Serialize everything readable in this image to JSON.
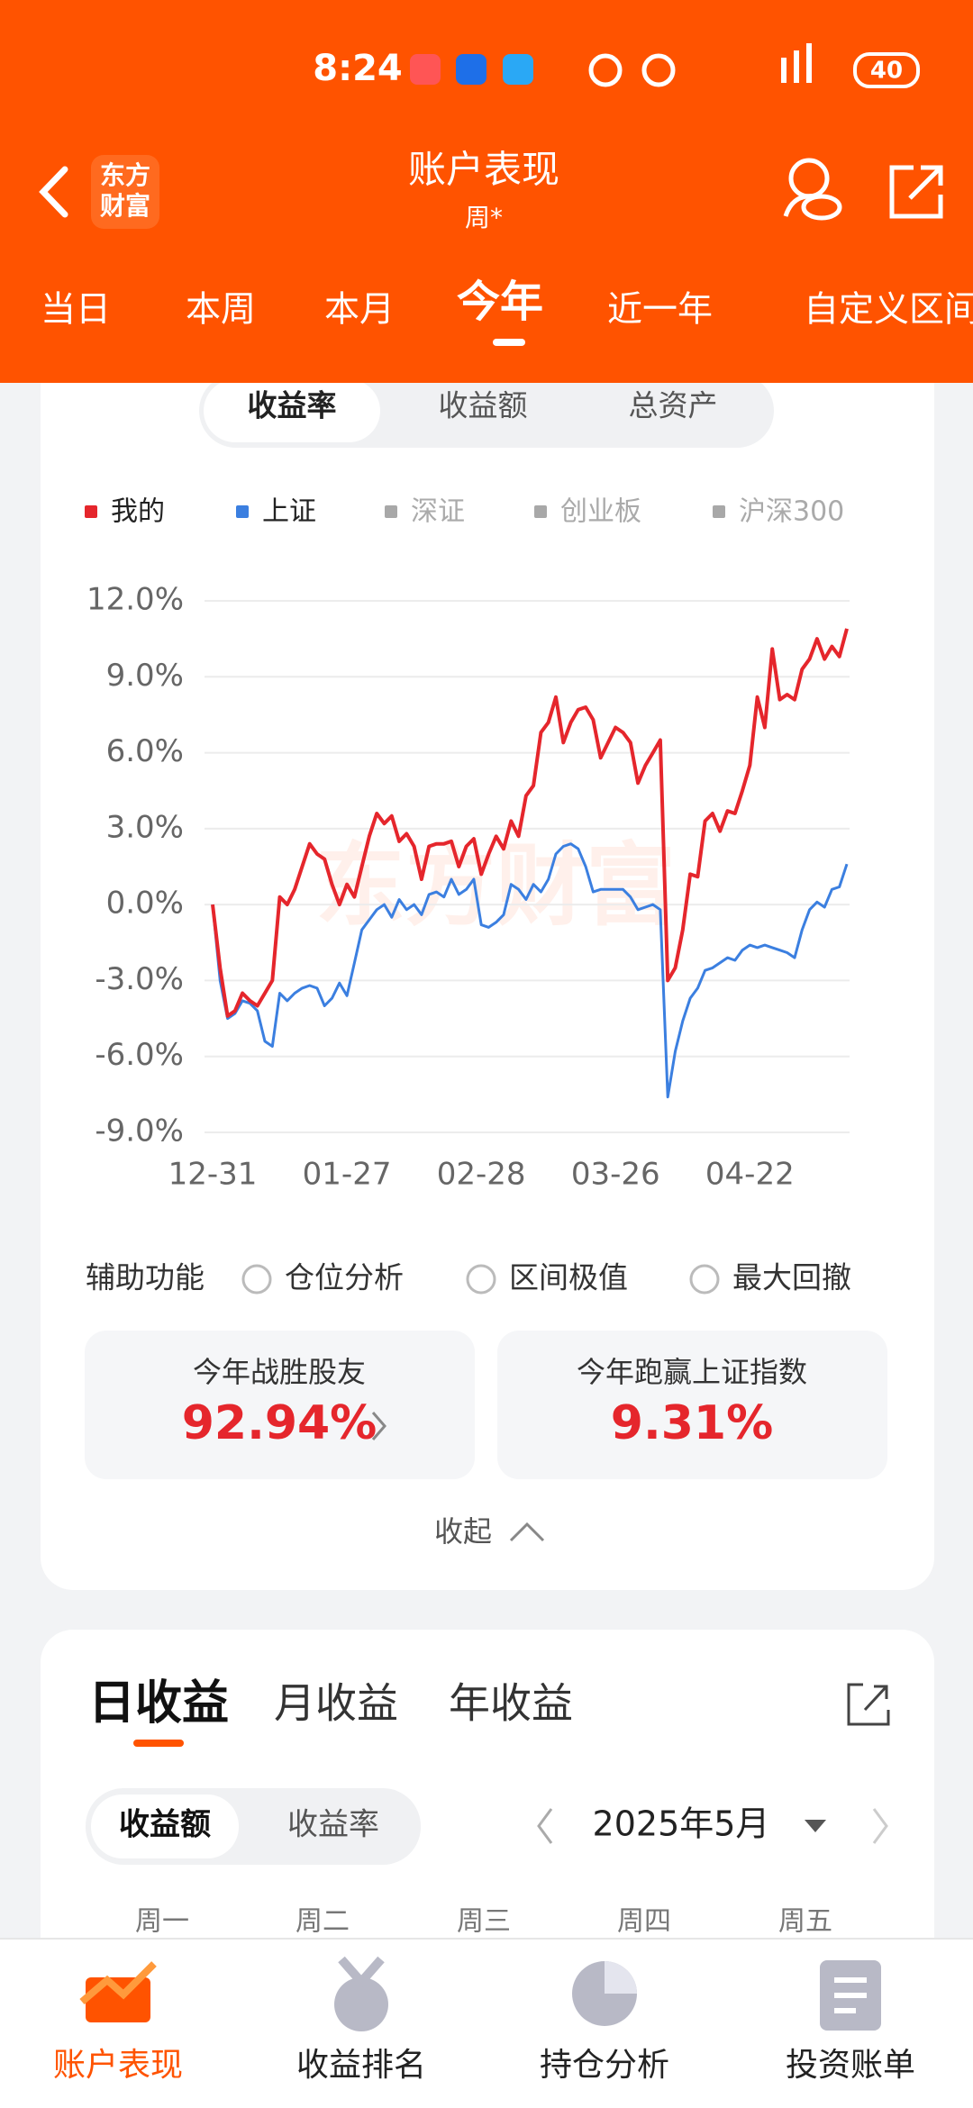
{
  "status_bar": {
    "time": "8:24",
    "battery": "40"
  },
  "header": {
    "title": "账户表现",
    "subtitle": "周*",
    "logo_lines": [
      "东方",
      "财富"
    ]
  },
  "period_tabs": {
    "items": [
      "当日",
      "本周",
      "本月",
      "今年",
      "近一年",
      "自定义区间"
    ],
    "active": 3
  },
  "metric_tabs": {
    "items": [
      "收益率",
      "收益额",
      "总资产"
    ],
    "active": 0
  },
  "watermark": "东方财富",
  "chart_data": {
    "type": "line",
    "categories": [
      "12-31",
      null,
      null,
      null,
      null,
      null,
      null,
      null,
      null,
      null,
      null,
      null,
      null,
      null,
      null,
      null,
      null,
      null,
      "01-27",
      null,
      null,
      null,
      null,
      null,
      null,
      null,
      null,
      null,
      null,
      null,
      null,
      null,
      null,
      null,
      null,
      null,
      "02-28",
      null,
      null,
      null,
      null,
      null,
      null,
      null,
      null,
      null,
      null,
      null,
      null,
      null,
      null,
      null,
      null,
      null,
      "03-26",
      null,
      null,
      null,
      null,
      null,
      null,
      null,
      null,
      null,
      null,
      null,
      null,
      null,
      null,
      null,
      null,
      null,
      "04-22",
      null,
      null,
      null,
      null,
      null,
      null,
      null,
      null,
      null,
      null,
      null,
      null,
      null
    ],
    "series": [
      {
        "name": "我的",
        "color": "#e5262c",
        "values": [
          0,
          -2.5,
          -4.4,
          -4.2,
          -3.5,
          -3.8,
          -4.0,
          -3.5,
          -3.0,
          0.3,
          0.0,
          0.6,
          1.5,
          2.4,
          2.0,
          1.8,
          0.8,
          0.0,
          0.8,
          0.3,
          1.5,
          2.7,
          3.6,
          3.2,
          3.5,
          2.5,
          2.8,
          2.3,
          1.0,
          2.3,
          2.4,
          2.4,
          2.5,
          1.5,
          2.3,
          2.6,
          1.2,
          2.0,
          2.7,
          2.2,
          3.3,
          2.7,
          4.3,
          4.7,
          6.8,
          7.2,
          8.2,
          6.4,
          7.2,
          7.7,
          7.8,
          7.3,
          5.8,
          6.4,
          7.0,
          6.8,
          6.4,
          4.8,
          5.5,
          6.0,
          6.5,
          -3.0,
          -2.5,
          -1.0,
          1.2,
          1.1,
          3.3,
          3.6,
          2.9,
          3.7,
          3.6,
          4.5,
          5.5,
          8.2,
          7.0,
          10.1,
          8.1,
          8.3,
          8.1,
          9.3,
          9.7,
          10.5,
          9.7,
          10.2,
          9.8,
          10.9
        ]
      },
      {
        "name": "上证",
        "color": "#3b7fe0",
        "values": [
          0,
          -3.0,
          -4.5,
          -4.3,
          -3.8,
          -3.9,
          -4.2,
          -5.4,
          -5.6,
          -3.5,
          -3.8,
          -3.5,
          -3.3,
          -3.2,
          -3.3,
          -4.0,
          -3.7,
          -3.1,
          -3.6,
          -2.3,
          -1.0,
          -0.6,
          -0.2,
          0.0,
          -0.5,
          0.2,
          -0.2,
          0.0,
          -0.4,
          0.4,
          0.5,
          0.3,
          1.0,
          0.4,
          0.6,
          1.0,
          -0.8,
          -0.9,
          -0.7,
          -0.4,
          0.8,
          0.6,
          0.2,
          0.8,
          0.5,
          1.0,
          2.0,
          2.3,
          2.4,
          2.2,
          1.5,
          0.5,
          0.6,
          0.6,
          0.6,
          0.6,
          0.3,
          -0.2,
          -0.1,
          0.0,
          -0.2,
          -7.6,
          -5.8,
          -4.6,
          -3.7,
          -3.3,
          -2.6,
          -2.5,
          -2.3,
          -2.1,
          -2.2,
          -1.8,
          -1.6,
          -1.7,
          -1.6,
          -1.7,
          -1.8,
          -1.9,
          -2.1,
          -1.0,
          -0.2,
          0.1,
          -0.1,
          0.6,
          0.7,
          1.6
        ]
      }
    ],
    "hidden_series": [
      {
        "name": "深证",
        "color": "#a8a8a8"
      },
      {
        "name": "创业板",
        "color": "#a8a8a8"
      },
      {
        "name": "沪深300",
        "color": "#a8a8a8"
      }
    ],
    "ylim": [
      -9,
      12
    ],
    "yticks": [
      {
        "value": 12,
        "label": "12.0%"
      },
      {
        "value": 9,
        "label": "9.0%"
      },
      {
        "value": 6,
        "label": "6.0%"
      },
      {
        "value": 3,
        "label": "3.0%"
      },
      {
        "value": 0,
        "label": "0.0%"
      },
      {
        "value": -3,
        "label": "-3.0%"
      },
      {
        "value": -6,
        "label": "-6.0%"
      },
      {
        "value": -9,
        "label": "-9.0%"
      }
    ],
    "grid": true
  },
  "aux": {
    "label": "辅助功能",
    "options": [
      "仓位分析",
      "区间极值",
      "最大回撤"
    ]
  },
  "stats": [
    {
      "label": "今年战胜股友",
      "value": "92.94%"
    },
    {
      "label": "今年跑赢上证指数",
      "value": "9.31%"
    }
  ],
  "collapse": "收起",
  "earnings": {
    "tabs": [
      "日收益",
      "月收益",
      "年收益"
    ],
    "active": 0,
    "toggle": [
      "收益额",
      "收益率"
    ],
    "toggle_active": 0,
    "month": "2025年5月",
    "weekdays": [
      "周一",
      "周二",
      "周三",
      "周四",
      "周五"
    ]
  },
  "bottom_nav": {
    "items": [
      "账户表现",
      "收益排名",
      "持仓分析",
      "投资账单"
    ],
    "active": 0
  }
}
